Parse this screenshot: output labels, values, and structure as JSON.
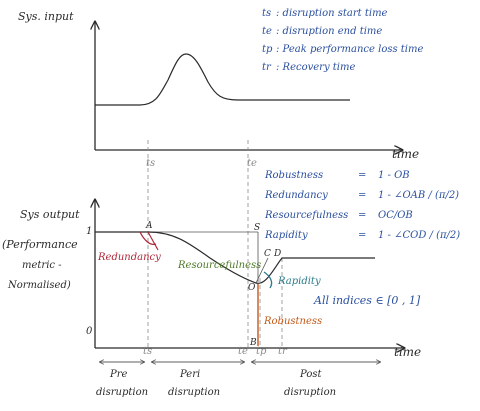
{
  "top_panel": {
    "y_axis_label": "Sys. input",
    "x_axis_label": "time",
    "tick_ts": "ts",
    "tick_te": "te"
  },
  "legend_definitions": [
    {
      "symbol": "ts",
      "text": ": disruption start time"
    },
    {
      "symbol": "te",
      "text": ": disruption end time"
    },
    {
      "symbol": "tp",
      "text": ": Peak performance loss time"
    },
    {
      "symbol": "tr",
      "text": ": Recovery time"
    }
  ],
  "formulas": [
    {
      "name": "Robustness",
      "eq": "=",
      "expr": "1 - OB"
    },
    {
      "name": "Redundancy",
      "eq": "=",
      "expr": "1 - ∠OAB / (π/2)"
    },
    {
      "name": "Resourcefulness",
      "eq": "=",
      "expr": "OC/OB"
    },
    {
      "name": "Rapidity",
      "eq": "=",
      "expr": "1 - ∠COD / (π/2)"
    }
  ],
  "bottom_panel": {
    "y_axis_label": "Sys output",
    "y_axis_note_1": "(Performance",
    "y_axis_note_2": "metric -",
    "y_axis_note_3": "Normalised)",
    "tick_one": "1",
    "tick_zero": "0",
    "x_axis_label": "time",
    "ticks": [
      "ts",
      "te",
      "tp",
      "tr"
    ],
    "point_labels": {
      "A": "A",
      "S": "S",
      "C": "C",
      "D": "D",
      "O": "O",
      "B": "B"
    },
    "annotations": {
      "redundancy": "Redundancy",
      "resourcefulness": "Resourcefulness",
      "rapidity": "Rapidity",
      "robustness": "Robustness",
      "indices_range": "All indices ∈ [0 , 1]"
    },
    "phases": [
      {
        "line1": "Pre",
        "line2": "disruption"
      },
      {
        "line1": "Peri",
        "line2": "disruption"
      },
      {
        "line1": "Post",
        "line2": "disruption"
      }
    ]
  },
  "colors": {
    "ink": "#2b2b2b",
    "blue": "#2a4f9e",
    "redundancy": "#b0283a",
    "resourcefulness": "#4f7a2a",
    "rapidity": "#2a7a8a",
    "robustness": "#c25a1a"
  }
}
